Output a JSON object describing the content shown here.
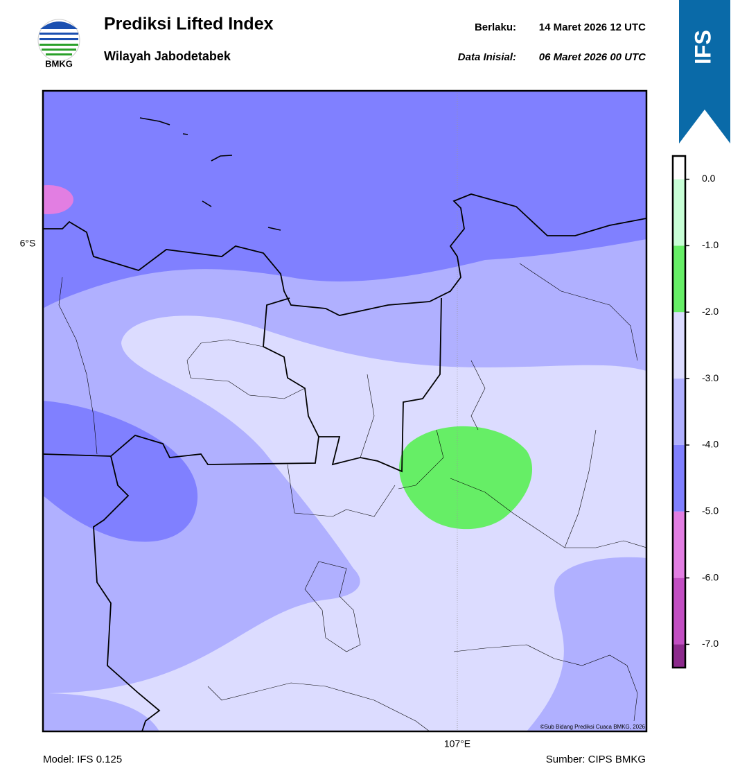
{
  "header": {
    "logo_text": "BMKG",
    "title": "Prediksi Lifted Index",
    "subtitle": "Wilayah Jabodetabek",
    "valid_label": "Berlaku:",
    "valid_time": "14 Maret 2026 12 UTC",
    "init_label": "Data Inisial:",
    "init_time": "06 Maret 2026 00 UTC",
    "badge": "IFS"
  },
  "map": {
    "lat_label": "6°S",
    "lon_label": "107°E",
    "credit": "©Sub Bidang Prediksi Cuaca BMKG, 2026"
  },
  "colorbar": {
    "lim": [
      -7.35,
      0.35
    ],
    "bins": [
      -7.35,
      -7,
      -6,
      -5,
      -4,
      -3,
      -2,
      -1,
      0,
      0.35
    ],
    "colors": [
      "#8c2a8c",
      "#c24ec2",
      "#e27ee2",
      "#8080ff",
      "#b0b0ff",
      "#dcdcff",
      "#66ee66",
      "#c8ffd6",
      "#ffffff"
    ],
    "ticks": [
      {
        "value": 0,
        "label": "0.0"
      },
      {
        "value": -1,
        "label": "-1.0"
      },
      {
        "value": -2,
        "label": "-2.0"
      },
      {
        "value": -3,
        "label": "-3.0"
      },
      {
        "value": -4,
        "label": "-4.0"
      },
      {
        "value": -5,
        "label": "-5.0"
      },
      {
        "value": -6,
        "label": "-6.0"
      },
      {
        "value": -7,
        "label": "-7.0"
      }
    ]
  },
  "footer": {
    "model": "Model: IFS 0.125",
    "source": "Sumber: CIPS BMKG"
  }
}
